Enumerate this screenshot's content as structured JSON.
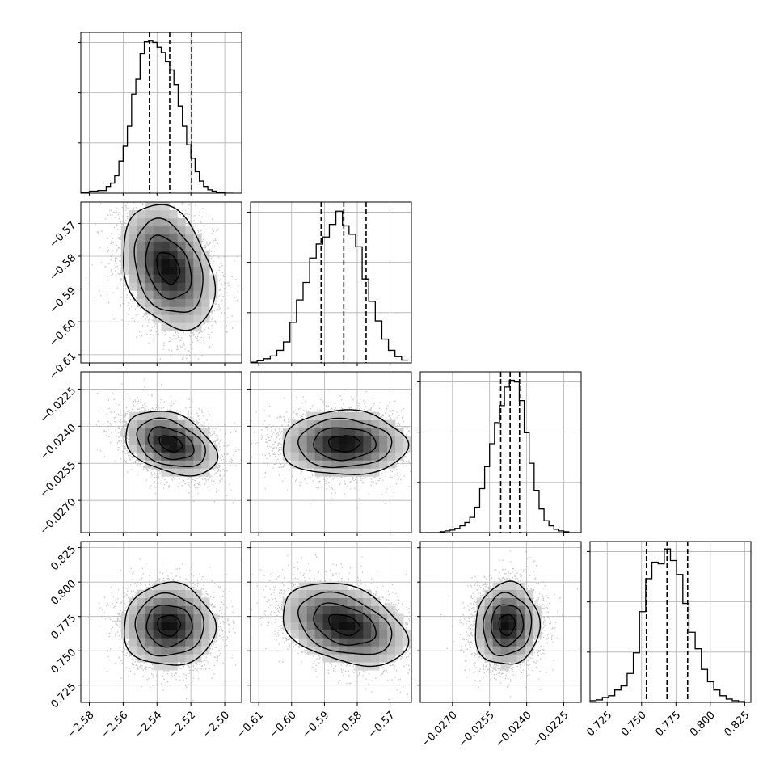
{
  "chart_data": {
    "type": "corner",
    "parameters": [
      {
        "axis_range": [
          -2.585,
          -2.49
        ],
        "ticks": [
          -2.58,
          -2.56,
          -2.54,
          -2.52,
          -2.5
        ],
        "tick_labels": [
          "−2.58",
          "−2.56",
          "−2.54",
          "−2.52",
          "−2.50"
        ],
        "quantiles": [
          -2.5445,
          -2.5325,
          -2.5195
        ],
        "histogram": {
          "bin_edges": [
            -2.585,
            -2.58,
            -2.575,
            -2.57,
            -2.5675,
            -2.565,
            -2.5625,
            -2.56,
            -2.5575,
            -2.555,
            -2.5525,
            -2.55,
            -2.5475,
            -2.545,
            -2.5425,
            -2.54,
            -2.5375,
            -2.535,
            -2.5325,
            -2.53,
            -2.5275,
            -2.525,
            -2.5225,
            -2.52,
            -2.5175,
            -2.515,
            -2.5125,
            -2.51,
            -2.5075,
            -2.505,
            -2.5,
            -2.495
          ],
          "counts": [
            1,
            3,
            4,
            10,
            15,
            26,
            48,
            70,
            100,
            148,
            170,
            208,
            226,
            227,
            225,
            218,
            210,
            196,
            184,
            162,
            130,
            100,
            72,
            52,
            32,
            18,
            10,
            5,
            3,
            1,
            0
          ]
        },
        "hist_max": 240
      },
      {
        "axis_range": [
          -0.6125,
          -0.5635
        ],
        "ticks": [
          -0.61,
          -0.6,
          -0.59,
          -0.58,
          -0.57
        ],
        "tick_labels": [
          "−0.61",
          "−0.60",
          "−0.59",
          "−0.58",
          "−0.57"
        ],
        "quantiles": [
          -0.591,
          -0.5841,
          -0.5773
        ],
        "histogram": {
          "bin_edges": [
            -0.6125,
            -0.6105,
            -0.6085,
            -0.6065,
            -0.6045,
            -0.6025,
            -0.6005,
            -0.5985,
            -0.5965,
            -0.5945,
            -0.5925,
            -0.5905,
            -0.5885,
            -0.5865,
            -0.5845,
            -0.5825,
            -0.5805,
            -0.5785,
            -0.5765,
            -0.5745,
            -0.5725,
            -0.5705,
            -0.5685,
            -0.5665,
            -0.5645
          ],
          "counts": [
            1,
            3,
            6,
            10,
            18,
            30,
            58,
            90,
            115,
            150,
            170,
            180,
            198,
            217,
            196,
            184,
            166,
            120,
            88,
            60,
            34,
            18,
            9,
            4
          ]
        },
        "hist_max": 230
      },
      {
        "axis_range": [
          -0.0283,
          -0.0218
        ],
        "ticks": [
          -0.027,
          -0.0255,
          -0.024,
          -0.0225
        ],
        "tick_labels": [
          "−0.0270",
          "−0.0255",
          "−0.0240",
          "−0.0225"
        ],
        "quantiles": [
          -0.02505,
          -0.02467,
          -0.02429
        ],
        "histogram": {
          "bin_edges": [
            -0.0283,
            -0.0281,
            -0.0279,
            -0.0277,
            -0.0275,
            -0.0273,
            -0.0271,
            -0.0269,
            -0.0267,
            -0.0265,
            -0.0263,
            -0.0261,
            -0.0259,
            -0.0257,
            -0.0255,
            -0.0253,
            -0.0251,
            -0.0249,
            -0.0247,
            -0.0245,
            -0.0243,
            -0.0241,
            -0.0239,
            -0.0237,
            -0.0235,
            -0.0233,
            -0.0231,
            -0.0229,
            -0.0227,
            -0.0225,
            -0.0223,
            -0.0218
          ],
          "counts": [
            0,
            0,
            0,
            0,
            1,
            2,
            3,
            5,
            8,
            12,
            18,
            30,
            52,
            78,
            105,
            130,
            150,
            172,
            180,
            178,
            156,
            118,
            82,
            50,
            28,
            14,
            8,
            4,
            2,
            1,
            0
          ]
        },
        "hist_max": 190
      },
      {
        "axis_range": [
          0.7125,
          0.8295
        ],
        "ticks": [
          0.725,
          0.75,
          0.775,
          0.8,
          0.825
        ],
        "tick_labels": [
          "0.725",
          "0.750",
          "0.775",
          "0.800",
          "0.825"
        ],
        "quantiles": [
          0.7535,
          0.7685,
          0.7835
        ],
        "histogram": {
          "bin_edges": [
            0.7125,
            0.717,
            0.7215,
            0.726,
            0.7305,
            0.735,
            0.7395,
            0.744,
            0.7485,
            0.753,
            0.7575,
            0.762,
            0.7665,
            0.771,
            0.7755,
            0.78,
            0.7845,
            0.789,
            0.7935,
            0.798,
            0.8025,
            0.807,
            0.8115,
            0.816,
            0.8205,
            0.825,
            0.8295
          ],
          "counts": [
            2,
            3,
            6,
            8,
            15,
            20,
            35,
            60,
            110,
            150,
            170,
            168,
            186,
            172,
            155,
            120,
            85,
            65,
            40,
            25,
            15,
            8,
            4,
            2,
            1,
            0
          ]
        },
        "hist_max": 195
      }
    ],
    "pairs": [
      {
        "x_param": 0,
        "y_param": 1,
        "center": [
          -2.5335,
          -0.5835
        ],
        "std": [
          0.0135,
          0.0095
        ],
        "rho": -0.3,
        "samples": 4500,
        "contour_sigmas": [
          0.5,
          1.0,
          1.5,
          2.0
        ]
      },
      {
        "x_param": 0,
        "y_param": 2,
        "center": [
          -2.532,
          -0.0247
        ],
        "std": [
          0.0135,
          0.00065
        ],
        "rho": -0.35,
        "samples": 4500,
        "contour_sigmas": [
          0.5,
          1.0,
          1.5,
          2.0
        ]
      },
      {
        "x_param": 1,
        "y_param": 2,
        "center": [
          -0.584,
          -0.0247
        ],
        "std": [
          0.0095,
          0.00065
        ],
        "rho": 0.0,
        "samples": 4500,
        "contour_sigmas": [
          0.5,
          1.0,
          1.5,
          2.0
        ]
      },
      {
        "x_param": 0,
        "y_param": 3,
        "center": [
          -2.533,
          0.7685
        ],
        "std": [
          0.0135,
          0.015
        ],
        "rho": 0.0,
        "samples": 4500,
        "contour_sigmas": [
          0.5,
          1.0,
          1.5,
          2.0
        ]
      },
      {
        "x_param": 1,
        "y_param": 3,
        "center": [
          -0.584,
          0.769
        ],
        "std": [
          0.0095,
          0.015
        ],
        "rho": -0.35,
        "samples": 4500,
        "contour_sigmas": [
          0.5,
          1.0,
          1.5,
          2.0
        ]
      },
      {
        "x_param": 2,
        "y_param": 3,
        "center": [
          -0.0248,
          0.769
        ],
        "std": [
          0.00065,
          0.015
        ],
        "rho": 0.05,
        "samples": 4500,
        "contour_sigmas": [
          0.5,
          1.0,
          1.5,
          2.0
        ]
      }
    ],
    "grid": true,
    "colors": {
      "line": "#000000",
      "grid": "#b0b0b0",
      "points": "#9a9a9a",
      "background": "#ffffff"
    }
  }
}
